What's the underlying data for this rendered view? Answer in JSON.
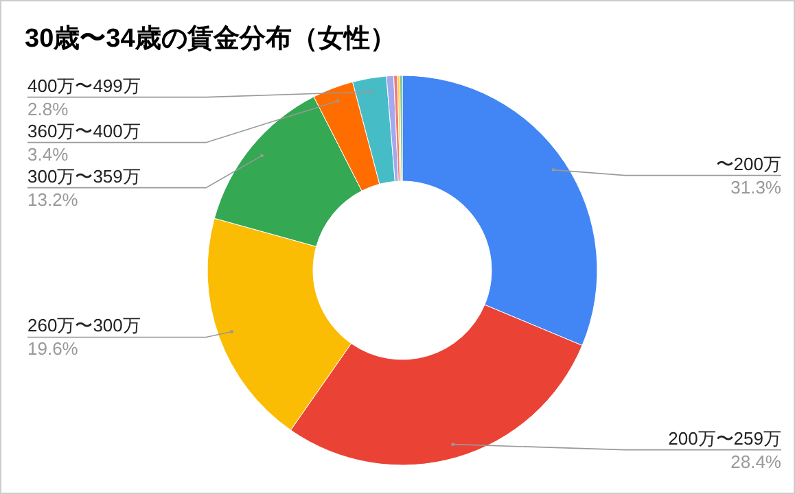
{
  "chart_data": {
    "type": "donut",
    "title": "30歳〜34歳の賃金分布（女性）",
    "categories": [
      "〜200万",
      "200万〜259万",
      "260万〜300万",
      "300万〜359万",
      "360万〜400万",
      "400万〜499万",
      null,
      null,
      null,
      null
    ],
    "values": [
      31.3,
      28.4,
      19.6,
      13.2,
      3.4,
      2.8,
      0.6,
      0.3,
      0.2,
      0.2
    ],
    "colors": [
      "#4285f4",
      "#ea4335",
      "#fbbc04",
      "#34a853",
      "#ff6d01",
      "#46bdc6",
      "#a3a8f0",
      "#f07b72",
      "#fcd04f",
      "#71c287"
    ],
    "value_labels": [
      "31.3%",
      "28.4%",
      "19.6%",
      "13.2%",
      "3.4%",
      "2.8%",
      null,
      null,
      null,
      null
    ]
  }
}
